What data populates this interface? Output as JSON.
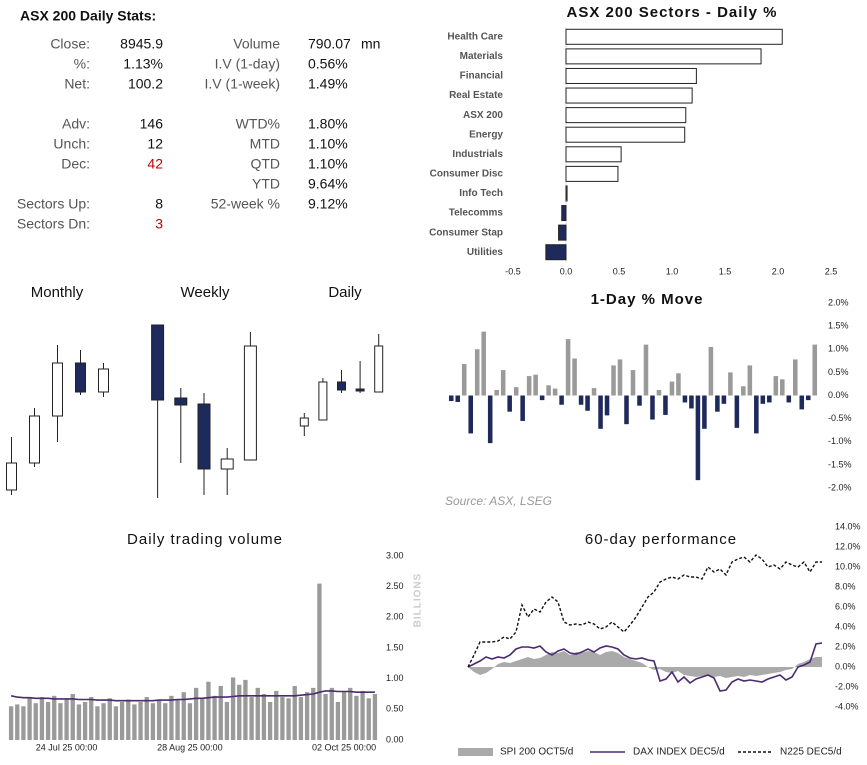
{
  "stats": {
    "title": "ASX 200 Daily Stats:",
    "left": [
      {
        "label": "Close:",
        "value": "8945.9"
      },
      {
        "label": "%:",
        "value": "1.13%"
      },
      {
        "label": "Net:",
        "value": "100.2"
      },
      {
        "label": "Adv:",
        "value": "146"
      },
      {
        "label": "Unch:",
        "value": "12"
      },
      {
        "label": "Dec:",
        "value": "42",
        "color": "#c00000"
      },
      {
        "label": "Sectors Up:",
        "value": "8"
      },
      {
        "label": "Sectors Dn:",
        "value": "3",
        "color": "#c00000"
      }
    ],
    "right": [
      {
        "label": "Volume",
        "value": "790.07",
        "unit": "mn"
      },
      {
        "label": "I.V (1-day)",
        "value": "0.56%"
      },
      {
        "label": "I.V (1-week)",
        "value": "1.49%"
      },
      {
        "label": "WTD%",
        "value": "1.80%"
      },
      {
        "label": "MTD",
        "value": "1.10%"
      },
      {
        "label": "QTD",
        "value": "1.10%"
      },
      {
        "label": "YTD",
        "value": "9.64%"
      },
      {
        "label": "52-week %",
        "value": "9.12%"
      }
    ]
  },
  "chart_data": [
    {
      "type": "bar",
      "orientation": "horizontal",
      "title": "ASX 200 Sectors - Daily %",
      "categories": [
        "Health Care",
        "Materials",
        "Financial",
        "Real Estate",
        "ASX 200",
        "Energy",
        "Industrials",
        "Consumer Disc",
        "Info Tech",
        "Telecomms",
        "Consumer Stap",
        "Utilities"
      ],
      "values": [
        2.04,
        1.84,
        1.23,
        1.19,
        1.13,
        1.12,
        0.52,
        0.49,
        0.01,
        -0.04,
        -0.07,
        -0.19
      ],
      "colors": {
        "positive": "#ffffff",
        "negative": "#1f2a5c",
        "edge": "#222222"
      },
      "xlim": [
        -0.5,
        2.5
      ],
      "xticks": [
        -0.5,
        {
          "value": 0,
          "label": "0.0"
        },
        0.5,
        {
          "value": 1,
          "label": "1.0"
        },
        1.5,
        {
          "value": 2,
          "label": "2.0"
        },
        2.5
      ]
    },
    {
      "type": "candlestick",
      "title": "Monthly",
      "ylim": [
        0,
        200
      ],
      "colors": {
        "up": "#ffffff",
        "down": "#1f2a5c",
        "edge": "#222222"
      },
      "open": [
        15,
        42,
        89,
        142,
        113
      ],
      "high": [
        68,
        97,
        160,
        155,
        142
      ],
      "low": [
        10,
        38,
        63,
        110,
        108
      ],
      "close": [
        42,
        89,
        142,
        113,
        136
      ]
    },
    {
      "type": "candlestick",
      "title": "Weekly",
      "ylim": [
        0,
        200
      ],
      "colors": {
        "up": "#ffffff",
        "down": "#1f2a5c",
        "edge": "#222222"
      },
      "open": [
        180,
        107,
        101,
        36,
        45
      ],
      "high": [
        180,
        117,
        112,
        57,
        173
      ],
      "low": [
        7,
        42,
        10,
        10,
        45
      ],
      "close": [
        105,
        100,
        36,
        46,
        159
      ]
    },
    {
      "type": "candlestick",
      "title": "Daily",
      "ylim": [
        0,
        200
      ],
      "colors": {
        "up": "#ffffff",
        "down": "#1f2a5c",
        "edge": "#222222"
      },
      "open": [
        79,
        85,
        123,
        116,
        113
      ],
      "high": [
        92,
        127,
        135,
        144,
        171
      ],
      "low": [
        69,
        85,
        112,
        112,
        113
      ],
      "close": [
        87,
        123,
        115,
        114,
        159
      ]
    },
    {
      "type": "bar",
      "orientation": "vertical",
      "title": "1-Day % Move",
      "values": [
        -0.12,
        -0.14,
        0.68,
        -0.82,
        1.0,
        1.38,
        -1.03,
        0.12,
        0.55,
        -0.35,
        0.18,
        -0.55,
        0.42,
        0.45,
        -0.1,
        0.22,
        0.15,
        -0.2,
        1.22,
        0.8,
        -0.2,
        -0.33,
        0.16,
        -0.72,
        -0.43,
        0.65,
        0.78,
        -0.62,
        0.55,
        -0.22,
        1.1,
        -0.52,
        0.12,
        -0.42,
        0.3,
        0.48,
        -0.15,
        -0.28,
        -1.83,
        -0.72,
        1.05,
        -0.35,
        -0.18,
        0.5,
        -0.7,
        0.2,
        0.65,
        -0.82,
        -0.18,
        -0.15,
        0.42,
        0.35,
        -0.15,
        0.78,
        -0.3,
        -0.1,
        1.1
      ],
      "colors": {
        "positive": "#9a9a9a",
        "negative": "#1f2a5c"
      },
      "ylim": [
        -2,
        2
      ],
      "yticks": [
        {
          "value": 2,
          "label": "2.0%"
        },
        {
          "value": 1.5,
          "label": "1.5%"
        },
        {
          "value": 1,
          "label": "1.0%"
        },
        {
          "value": 0.5,
          "label": "0.5%"
        },
        {
          "value": 0,
          "label": "0.0%"
        },
        {
          "value": -0.5,
          "label": "-0.5%"
        },
        {
          "value": -1,
          "label": "-1.0%"
        },
        {
          "value": -1.5,
          "label": "-1.5%"
        },
        {
          "value": -2,
          "label": "-2.0%"
        }
      ],
      "annotation": "Source: ASX, LSEG"
    },
    {
      "type": "combo",
      "title": "Daily trading volume",
      "y_label": "BILLIONS",
      "categories": [
        null,
        null,
        null,
        null,
        null,
        null,
        null,
        null,
        null,
        "24 Jul 25 00:00",
        null,
        null,
        null,
        null,
        null,
        null,
        null,
        null,
        null,
        null,
        null,
        null,
        null,
        null,
        null,
        null,
        null,
        null,
        null,
        "28 Aug 25 00:00",
        null,
        null,
        null,
        null,
        null,
        null,
        null,
        null,
        null,
        null,
        null,
        null,
        null,
        null,
        null,
        null,
        null,
        null,
        null,
        null,
        null,
        null,
        null,
        null,
        "02 Oct 25 00:00",
        null,
        null,
        null,
        null,
        null
      ],
      "series": [
        {
          "kind": "bar",
          "color": "#9a9a9a",
          "values": [
            0.55,
            0.58,
            0.55,
            0.68,
            0.6,
            0.7,
            0.62,
            0.72,
            0.6,
            0.66,
            0.75,
            0.58,
            0.62,
            0.7,
            0.55,
            0.6,
            0.68,
            0.55,
            0.62,
            0.66,
            0.58,
            0.62,
            0.7,
            0.6,
            0.64,
            0.6,
            0.72,
            0.66,
            0.78,
            0.6,
            0.85,
            0.68,
            0.95,
            0.72,
            0.88,
            0.62,
            1.02,
            0.9,
            0.98,
            0.7,
            0.85,
            0.75,
            0.62,
            0.8,
            0.7,
            0.68,
            0.88,
            0.7,
            0.78,
            0.85,
            2.55,
            0.75,
            0.85,
            0.62,
            0.78,
            0.85,
            0.72,
            0.8,
            0.68,
            0.75
          ]
        },
        {
          "kind": "line",
          "color": "#4b2a72",
          "values": [
            0.72,
            0.7,
            0.69,
            0.69,
            0.68,
            0.68,
            0.68,
            0.67,
            0.67,
            0.67,
            0.67,
            0.66,
            0.66,
            0.66,
            0.65,
            0.65,
            0.65,
            0.64,
            0.64,
            0.64,
            0.64,
            0.64,
            0.64,
            0.64,
            0.65,
            0.65,
            0.65,
            0.66,
            0.66,
            0.67,
            0.68,
            0.68,
            0.69,
            0.7,
            0.7,
            0.7,
            0.71,
            0.72,
            0.72,
            0.72,
            0.72,
            0.72,
            0.72,
            0.72,
            0.72,
            0.72,
            0.72,
            0.73,
            0.74,
            0.75,
            0.78,
            0.8,
            0.8,
            0.79,
            0.79,
            0.79,
            0.78,
            0.78,
            0.78,
            0.78
          ]
        }
      ],
      "ylim": [
        0,
        3
      ],
      "yticks": [
        {
          "value": 0,
          "label": "0.00"
        },
        {
          "value": 0.5,
          "label": "0.50"
        },
        {
          "value": 1,
          "label": "1.00"
        },
        {
          "value": 1.5,
          "label": "1.50"
        },
        {
          "value": 2,
          "label": "2.00"
        },
        {
          "value": 2.5,
          "label": "2.50"
        },
        {
          "value": 3,
          "label": "3.00"
        }
      ]
    },
    {
      "type": "line",
      "title": "60-day performance",
      "legend": "bottom",
      "series": [
        {
          "name": "SPI 200 OCT5/d",
          "style": "area",
          "color": "#aaaaaa",
          "values": [
            0,
            -0.5,
            -0.8,
            -0.6,
            -0.2,
            0.3,
            0.5,
            0.4,
            0.6,
            0.8,
            1.0,
            0.8,
            0.9,
            1.2,
            1.5,
            1.4,
            1.6,
            1.2,
            1.5,
            1.4,
            1.6,
            1.5,
            1.2,
            1.5,
            1.6,
            1.4,
            1.0,
            0.8,
            0.6,
            0.4,
            0,
            -0.3,
            -0.2,
            -0.5,
            -0.6,
            -0.4,
            -0.8,
            -0.9,
            -1.0,
            -0.9,
            -0.8,
            -1.0,
            -0.9,
            -1.1,
            -1.0,
            -0.9,
            -1.0,
            -0.8,
            -0.9,
            -0.8,
            -0.7,
            -0.6,
            -0.5,
            -0.3,
            -0.2,
            0.3,
            0.5,
            0.8,
            1.0,
            1.0
          ]
        },
        {
          "name": "DAX INDEX DEC5/d",
          "style": "solid",
          "color": "#4b2a72",
          "values": [
            0,
            0.3,
            0.6,
            1.0,
            0.8,
            1.0,
            0.9,
            1.2,
            1.8,
            2.0,
            2.0,
            1.9,
            2.1,
            1.5,
            1.2,
            1.6,
            1.8,
            1.4,
            1.3,
            1.5,
            1.8,
            1.5,
            1.9,
            2.1,
            2.0,
            1.8,
            1.2,
            0.9,
            0.8,
            0.9,
            0.7,
            0.6,
            -1.4,
            -1.2,
            -0.5,
            -1.5,
            -1.0,
            -1.6,
            -1.2,
            -1.0,
            -0.8,
            -1.1,
            -2.4,
            -2.3,
            -1.5,
            -1.2,
            -1.4,
            -1.3,
            -1.4,
            -1.5,
            -1.2,
            -1.0,
            -0.8,
            -1.3,
            -1.0,
            0,
            0.2,
            0.5,
            2.3,
            2.4
          ]
        },
        {
          "name": "N225 DEC5/d",
          "style": "dashed",
          "color": "#111111",
          "values": [
            0,
            1.2,
            2.5,
            2.5,
            2.5,
            2.6,
            3.0,
            2.8,
            3.5,
            6.2,
            5.0,
            5.8,
            5.5,
            6.5,
            7.0,
            6.5,
            4.5,
            4.2,
            4.3,
            4.2,
            4.5,
            4.3,
            3.8,
            4.0,
            4.5,
            4.0,
            3.5,
            4.2,
            5.0,
            6.0,
            7.0,
            7.5,
            8.5,
            8.8,
            9.0,
            8.8,
            9.2,
            9.0,
            9.0,
            8.8,
            10.0,
            9.5,
            9.8,
            9.2,
            10.5,
            10.8,
            11.0,
            10.5,
            11.2,
            10.8,
            10.0,
            10.2,
            9.8,
            10.5,
            10.2,
            10.0,
            10.5,
            9.5,
            10.5,
            10.5
          ]
        }
      ],
      "ylim": [
        -4,
        14
      ],
      "yticks": [
        {
          "value": 14,
          "label": "14.0%"
        },
        {
          "value": 12,
          "label": "12.0%"
        },
        {
          "value": 10,
          "label": "10.0%"
        },
        {
          "value": 8,
          "label": "8.0%"
        },
        {
          "value": 6,
          "label": "6.0%"
        },
        {
          "value": 4,
          "label": "4.0%"
        },
        {
          "value": 2,
          "label": "2.0%"
        },
        {
          "value": 0,
          "label": "0.0%"
        },
        {
          "value": -2,
          "label": "-2.0%"
        },
        {
          "value": -4,
          "label": "-4.0%"
        }
      ]
    }
  ]
}
